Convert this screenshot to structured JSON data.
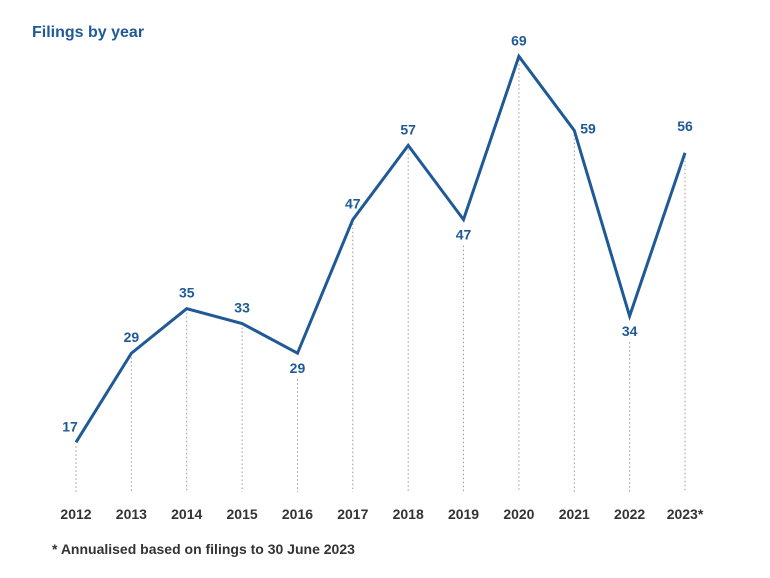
{
  "chart_data": {
    "type": "line",
    "title": "Filings by year",
    "footnote": "* Annualised based on filings to 30 June 2023",
    "categories": [
      "2012",
      "2013",
      "2014",
      "2015",
      "2016",
      "2017",
      "2018",
      "2019",
      "2020",
      "2021",
      "2022",
      "2023*"
    ],
    "values": [
      17,
      29,
      35,
      33,
      29,
      47,
      57,
      47,
      69,
      59,
      34,
      56
    ],
    "ylim": [
      6,
      72
    ],
    "grid": false,
    "colors": {
      "line": "#1f5a96",
      "label": "#1f5a96",
      "axis_text": "#333333",
      "drop_line": "#999999"
    }
  }
}
